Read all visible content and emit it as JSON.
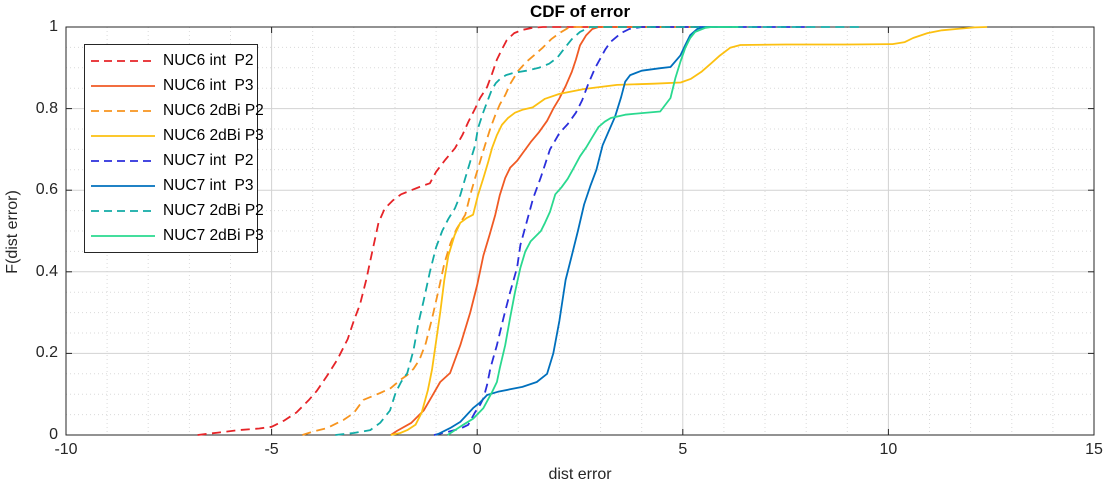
{
  "figure": {
    "title": "CDF of error",
    "xlabel": "dist error",
    "ylabel": "F(dist error)"
  },
  "chart_data": {
    "type": "line",
    "title": "CDF of error",
    "xlabel": "dist error",
    "ylabel": "F(dist error)",
    "xlim": [
      -10,
      15
    ],
    "ylim": [
      0,
      1
    ],
    "x_ticks": [
      -10,
      -5,
      0,
      5,
      10,
      15
    ],
    "y_ticks": [
      0,
      0.2,
      0.4,
      0.6,
      0.8,
      1
    ],
    "x_minor_step": 1,
    "y_minor_step": 0.05,
    "grid": true,
    "minor_grid": true,
    "legend_position": "top-left",
    "axis_color": "#262626",
    "major_grid_color": "#d2d2d2",
    "minor_grid_color": "#dadada",
    "series": [
      {
        "name": "NUC6 int  P2",
        "color": "#e62428",
        "dash": true,
        "points": [
          [
            -6.8,
            0
          ],
          [
            -6.3,
            0.006
          ],
          [
            -5.8,
            0.012
          ],
          [
            -5.3,
            0.016
          ],
          [
            -5,
            0.02
          ],
          [
            -4.7,
            0.035
          ],
          [
            -4.4,
            0.055
          ],
          [
            -4.1,
            0.085
          ],
          [
            -3.9,
            0.108
          ],
          [
            -3.65,
            0.145
          ],
          [
            -3.4,
            0.185
          ],
          [
            -3.15,
            0.235
          ],
          [
            -3,
            0.28
          ],
          [
            -2.85,
            0.32
          ],
          [
            -2.7,
            0.38
          ],
          [
            -2.55,
            0.45
          ],
          [
            -2.4,
            0.52
          ],
          [
            -2.25,
            0.555
          ],
          [
            -2.05,
            0.575
          ],
          [
            -1.85,
            0.59
          ],
          [
            -1.6,
            0.6
          ],
          [
            -1.35,
            0.61
          ],
          [
            -1.15,
            0.617
          ],
          [
            -1,
            0.645
          ],
          [
            -0.78,
            0.674
          ],
          [
            -0.54,
            0.703
          ],
          [
            -0.36,
            0.735
          ],
          [
            -0.22,
            0.767
          ],
          [
            -0.05,
            0.8
          ],
          [
            0.07,
            0.826
          ],
          [
            0.24,
            0.853
          ],
          [
            0.36,
            0.885
          ],
          [
            0.48,
            0.92
          ],
          [
            0.6,
            0.945
          ],
          [
            0.72,
            0.968
          ],
          [
            0.9,
            0.985
          ],
          [
            1.1,
            0.993
          ],
          [
            1.35,
            0.998
          ],
          [
            1.6,
            1
          ],
          [
            4.5,
            1
          ]
        ]
      },
      {
        "name": "NUC6 int  P3",
        "color": "#f05a24",
        "dash": false,
        "points": [
          [
            -2.1,
            0
          ],
          [
            -1.95,
            0.01
          ],
          [
            -1.6,
            0.03
          ],
          [
            -1.3,
            0.06
          ],
          [
            -1.07,
            0.1
          ],
          [
            -0.9,
            0.13
          ],
          [
            -0.66,
            0.152
          ],
          [
            -0.41,
            0.22
          ],
          [
            -0.17,
            0.3
          ],
          [
            0,
            0.368
          ],
          [
            0.15,
            0.44
          ],
          [
            0.3,
            0.49
          ],
          [
            0.44,
            0.54
          ],
          [
            0.55,
            0.588
          ],
          [
            0.68,
            0.63
          ],
          [
            0.8,
            0.655
          ],
          [
            0.97,
            0.672
          ],
          [
            1.1,
            0.69
          ],
          [
            1.3,
            0.718
          ],
          [
            1.5,
            0.742
          ],
          [
            1.7,
            0.77
          ],
          [
            1.85,
            0.8
          ],
          [
            2,
            0.825
          ],
          [
            2.15,
            0.855
          ],
          [
            2.3,
            0.89
          ],
          [
            2.4,
            0.92
          ],
          [
            2.5,
            0.955
          ],
          [
            2.65,
            0.98
          ],
          [
            2.8,
            0.995
          ],
          [
            2.95,
            1
          ],
          [
            5.3,
            1
          ]
        ]
      },
      {
        "name": "NUC6 2dBi P2",
        "color": "#f7941e",
        "dash": true,
        "points": [
          [
            -4.25,
            0
          ],
          [
            -4,
            0.008
          ],
          [
            -3.65,
            0.017
          ],
          [
            -3.25,
            0.037
          ],
          [
            -3,
            0.054
          ],
          [
            -2.77,
            0.086
          ],
          [
            -2.6,
            0.093
          ],
          [
            -2.36,
            0.103
          ],
          [
            -2.1,
            0.115
          ],
          [
            -1.87,
            0.135
          ],
          [
            -1.7,
            0.147
          ],
          [
            -1.55,
            0.162
          ],
          [
            -1.4,
            0.185
          ],
          [
            -1.25,
            0.225
          ],
          [
            -1.1,
            0.285
          ],
          [
            -0.95,
            0.35
          ],
          [
            -0.8,
            0.42
          ],
          [
            -0.65,
            0.47
          ],
          [
            -0.5,
            0.505
          ],
          [
            -0.29,
            0.54
          ],
          [
            -0.17,
            0.588
          ],
          [
            -0.05,
            0.63
          ],
          [
            0.07,
            0.67
          ],
          [
            0.19,
            0.71
          ],
          [
            0.32,
            0.752
          ],
          [
            0.44,
            0.784
          ],
          [
            0.55,
            0.81
          ],
          [
            0.68,
            0.833
          ],
          [
            0.8,
            0.86
          ],
          [
            1,
            0.893
          ],
          [
            1.2,
            0.915
          ],
          [
            1.4,
            0.932
          ],
          [
            1.6,
            0.95
          ],
          [
            1.8,
            0.97
          ],
          [
            2,
            0.985
          ],
          [
            2.25,
            1
          ],
          [
            5.5,
            1
          ]
        ]
      },
      {
        "name": "NUC6 2dBi P3",
        "color": "#fcc011",
        "dash": false,
        "points": [
          [
            -2.1,
            0
          ],
          [
            -1.87,
            0.005
          ],
          [
            -1.7,
            0.012
          ],
          [
            -1.5,
            0.025
          ],
          [
            -1.35,
            0.055
          ],
          [
            -1.2,
            0.11
          ],
          [
            -1.1,
            0.16
          ],
          [
            -1,
            0.23
          ],
          [
            -0.9,
            0.3
          ],
          [
            -0.8,
            0.38
          ],
          [
            -0.7,
            0.44
          ],
          [
            -0.55,
            0.49
          ],
          [
            -0.41,
            0.52
          ],
          [
            -0.25,
            0.532
          ],
          [
            -0.1,
            0.54
          ],
          [
            0.02,
            0.588
          ],
          [
            0.15,
            0.63
          ],
          [
            0.27,
            0.67
          ],
          [
            0.36,
            0.703
          ],
          [
            0.48,
            0.735
          ],
          [
            0.6,
            0.76
          ],
          [
            0.75,
            0.777
          ],
          [
            0.92,
            0.79
          ],
          [
            1.1,
            0.797
          ],
          [
            1.35,
            0.803
          ],
          [
            1.65,
            0.824
          ],
          [
            2,
            0.836
          ],
          [
            2.6,
            0.848
          ],
          [
            3.4,
            0.858
          ],
          [
            4.3,
            0.861
          ],
          [
            4.95,
            0.864
          ],
          [
            5.2,
            0.873
          ],
          [
            5.45,
            0.89
          ],
          [
            5.7,
            0.912
          ],
          [
            5.9,
            0.93
          ],
          [
            6.15,
            0.949
          ],
          [
            6.4,
            0.956
          ],
          [
            7.5,
            0.957
          ],
          [
            9,
            0.957
          ],
          [
            10.1,
            0.958
          ],
          [
            10.4,
            0.963
          ],
          [
            10.6,
            0.973
          ],
          [
            10.95,
            0.985
          ],
          [
            11.3,
            0.992
          ],
          [
            11.75,
            0.996
          ],
          [
            12.1,
            0.999
          ],
          [
            12.4,
            1
          ]
        ]
      },
      {
        "name": "NUC7 int  P2",
        "color": "#2b2fdc",
        "dash": true,
        "points": [
          [
            -1.05,
            0
          ],
          [
            -0.7,
            0.008
          ],
          [
            -0.4,
            0.016
          ],
          [
            -0.22,
            0.025
          ],
          [
            -0.05,
            0.056
          ],
          [
            0.07,
            0.074
          ],
          [
            0.15,
            0.09
          ],
          [
            0.24,
            0.123
          ],
          [
            0.32,
            0.164
          ],
          [
            0.48,
            0.22
          ],
          [
            0.64,
            0.287
          ],
          [
            0.8,
            0.35
          ],
          [
            0.97,
            0.41
          ],
          [
            1.05,
            0.466
          ],
          [
            1.2,
            0.52
          ],
          [
            1.36,
            0.58
          ],
          [
            1.55,
            0.632
          ],
          [
            1.77,
            0.7
          ],
          [
            2,
            0.74
          ],
          [
            2.2,
            0.762
          ],
          [
            2.4,
            0.79
          ],
          [
            2.55,
            0.82
          ],
          [
            2.7,
            0.86
          ],
          [
            2.87,
            0.9
          ],
          [
            3,
            0.924
          ],
          [
            3.11,
            0.944
          ],
          [
            3.24,
            0.963
          ],
          [
            3.5,
            0.985
          ],
          [
            3.7,
            0.995
          ],
          [
            4,
            1
          ],
          [
            8.1,
            1
          ]
        ]
      },
      {
        "name": "NUC7 int  P3",
        "color": "#0070bd",
        "dash": false,
        "points": [
          [
            -1,
            0
          ],
          [
            -0.66,
            0.017
          ],
          [
            -0.41,
            0.032
          ],
          [
            -0.1,
            0.066
          ],
          [
            0.07,
            0.08
          ],
          [
            0.24,
            0.098
          ],
          [
            0.5,
            0.106
          ],
          [
            0.8,
            0.112
          ],
          [
            1.1,
            0.118
          ],
          [
            1.45,
            0.13
          ],
          [
            1.7,
            0.15
          ],
          [
            1.85,
            0.2
          ],
          [
            2,
            0.28
          ],
          [
            2.15,
            0.38
          ],
          [
            2.3,
            0.44
          ],
          [
            2.45,
            0.5
          ],
          [
            2.6,
            0.565
          ],
          [
            2.75,
            0.61
          ],
          [
            2.9,
            0.65
          ],
          [
            3.05,
            0.71
          ],
          [
            3.2,
            0.745
          ],
          [
            3.35,
            0.78
          ],
          [
            3.5,
            0.828
          ],
          [
            3.6,
            0.866
          ],
          [
            3.72,
            0.882
          ],
          [
            4,
            0.893
          ],
          [
            4.45,
            0.899
          ],
          [
            4.7,
            0.902
          ],
          [
            4.94,
            0.93
          ],
          [
            5.06,
            0.956
          ],
          [
            5.18,
            0.98
          ],
          [
            5.35,
            0.995
          ],
          [
            5.5,
            1
          ],
          [
            6.3,
            1
          ]
        ]
      },
      {
        "name": "NUC7 2dBi P2",
        "color": "#12aba6",
        "dash": true,
        "points": [
          [
            -3.45,
            0
          ],
          [
            -3,
            0.005
          ],
          [
            -2.6,
            0.012
          ],
          [
            -2.36,
            0.03
          ],
          [
            -2.12,
            0.06
          ],
          [
            -1.98,
            0.105
          ],
          [
            -1.85,
            0.13
          ],
          [
            -1.7,
            0.152
          ],
          [
            -1.55,
            0.208
          ],
          [
            -1.43,
            0.274
          ],
          [
            -1.3,
            0.33
          ],
          [
            -1.15,
            0.4
          ],
          [
            -1,
            0.46
          ],
          [
            -0.85,
            0.5
          ],
          [
            -0.7,
            0.53
          ],
          [
            -0.54,
            0.556
          ],
          [
            -0.41,
            0.588
          ],
          [
            -0.29,
            0.63
          ],
          [
            -0.17,
            0.67
          ],
          [
            -0.05,
            0.71
          ],
          [
            0.02,
            0.752
          ],
          [
            0.15,
            0.792
          ],
          [
            0.24,
            0.816
          ],
          [
            0.35,
            0.845
          ],
          [
            0.45,
            0.862
          ],
          [
            0.55,
            0.872
          ],
          [
            0.7,
            0.882
          ],
          [
            0.9,
            0.888
          ],
          [
            1.2,
            0.893
          ],
          [
            1.5,
            0.9
          ],
          [
            1.75,
            0.91
          ],
          [
            1.95,
            0.925
          ],
          [
            2.1,
            0.945
          ],
          [
            2.3,
            0.97
          ],
          [
            2.5,
            0.988
          ],
          [
            2.75,
            1
          ],
          [
            9.3,
            1
          ]
        ]
      },
      {
        "name": "NUC7 2dBi P3",
        "color": "#2ad98f",
        "dash": false,
        "points": [
          [
            -0.72,
            0
          ],
          [
            -0.34,
            0.025
          ],
          [
            -0.1,
            0.04
          ],
          [
            0.15,
            0.066
          ],
          [
            0.36,
            0.105
          ],
          [
            0.48,
            0.13
          ],
          [
            0.55,
            0.164
          ],
          [
            0.68,
            0.22
          ],
          [
            0.8,
            0.287
          ],
          [
            0.92,
            0.35
          ],
          [
            1.05,
            0.41
          ],
          [
            1.17,
            0.45
          ],
          [
            1.3,
            0.475
          ],
          [
            1.55,
            0.5
          ],
          [
            1.65,
            0.52
          ],
          [
            1.77,
            0.547
          ],
          [
            1.9,
            0.59
          ],
          [
            2.05,
            0.607
          ],
          [
            2.2,
            0.628
          ],
          [
            2.35,
            0.655
          ],
          [
            2.5,
            0.683
          ],
          [
            2.65,
            0.705
          ],
          [
            2.8,
            0.73
          ],
          [
            2.95,
            0.755
          ],
          [
            3.1,
            0.768
          ],
          [
            3.25,
            0.777
          ],
          [
            3.6,
            0.785
          ],
          [
            4,
            0.789
          ],
          [
            4.45,
            0.793
          ],
          [
            4.7,
            0.826
          ],
          [
            4.82,
            0.875
          ],
          [
            4.94,
            0.914
          ],
          [
            5.06,
            0.949
          ],
          [
            5.18,
            0.973
          ],
          [
            5.3,
            0.988
          ],
          [
            5.55,
            0.998
          ],
          [
            5.7,
            1
          ],
          [
            6.35,
            1
          ]
        ]
      }
    ]
  }
}
